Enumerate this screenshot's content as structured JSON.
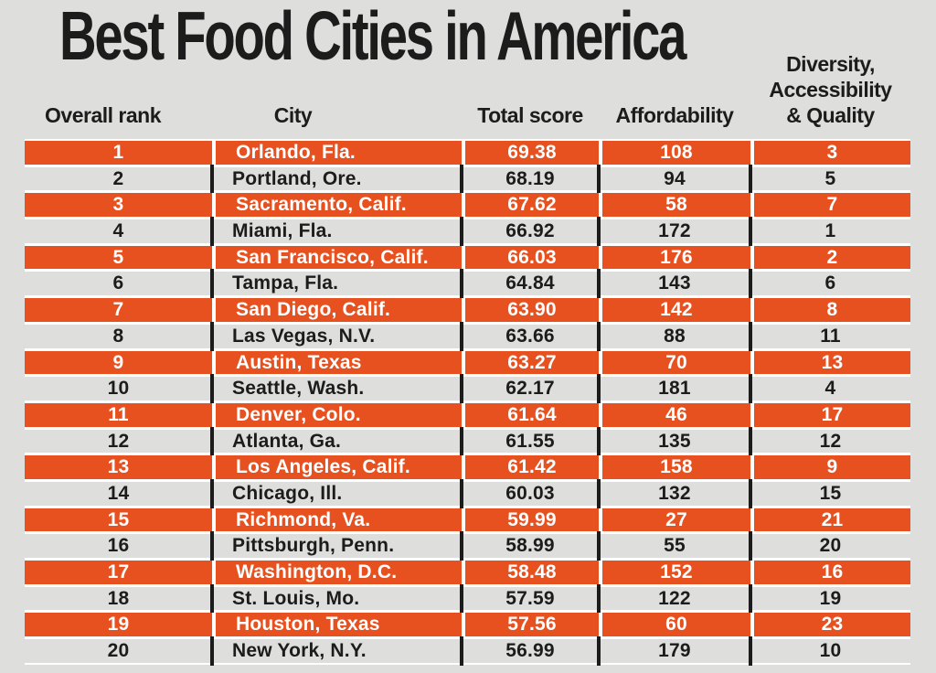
{
  "title": "Best Food Cities in America",
  "colors": {
    "background": "#DEDEDD",
    "highlight_orange": "#E7511F",
    "text_dark": "#1C1C1C",
    "text_light": "#FFFFFF",
    "row_gap_white": "#FFFFFF"
  },
  "daq_header_lines": [
    "Diversity,",
    "Accessibility",
    "& Quality"
  ],
  "chart_data": {
    "type": "table",
    "title": "Best Food Cities in America",
    "columns": [
      "Overall rank",
      "City",
      "Total score",
      "Affordability",
      "Diversity, Accessibility & Quality"
    ],
    "rows": [
      [
        "1",
        "Orlando, Fla.",
        "69.38",
        "108",
        "3"
      ],
      [
        "2",
        "Portland, Ore.",
        "68.19",
        "94",
        "5"
      ],
      [
        "3",
        "Sacramento, Calif.",
        "67.62",
        "58",
        "7"
      ],
      [
        "4",
        "Miami, Fla.",
        "66.92",
        "172",
        "1"
      ],
      [
        "5",
        "San Francisco, Calif.",
        "66.03",
        "176",
        "2"
      ],
      [
        "6",
        "Tampa, Fla.",
        "64.84",
        "143",
        "6"
      ],
      [
        "7",
        "San Diego, Calif.",
        "63.90",
        "142",
        "8"
      ],
      [
        "8",
        "Las Vegas, N.V.",
        "63.66",
        "88",
        "11"
      ],
      [
        "9",
        "Austin, Texas",
        "63.27",
        "70",
        "13"
      ],
      [
        "10",
        "Seattle, Wash.",
        "62.17",
        "181",
        "4"
      ],
      [
        "11",
        "Denver, Colo.",
        "61.64",
        "46",
        "17"
      ],
      [
        "12",
        "Atlanta, Ga.",
        "61.55",
        "135",
        "12"
      ],
      [
        "13",
        "Los Angeles, Calif.",
        "61.42",
        "158",
        "9"
      ],
      [
        "14",
        "Chicago, Ill.",
        "60.03",
        "132",
        "15"
      ],
      [
        "15",
        "Richmond, Va.",
        "59.99",
        "27",
        "21"
      ],
      [
        "16",
        "Pittsburgh, Penn.",
        "58.99",
        "55",
        "20"
      ],
      [
        "17",
        "Washington, D.C.",
        "58.48",
        "152",
        "16"
      ],
      [
        "18",
        "St. Louis, Mo.",
        "57.59",
        "122",
        "19"
      ],
      [
        "19",
        "Houston, Texas",
        "57.56",
        "60",
        "23"
      ],
      [
        "20",
        "New York, N.Y.",
        "56.99",
        "179",
        "10"
      ]
    ],
    "highlighted_ranks": [
      1,
      3,
      5,
      7,
      9,
      11,
      13,
      15,
      17,
      19
    ],
    "layout": "odd-ranked rows highlighted with orange bars, white gaps between rows, black column dividers on gray rows"
  }
}
